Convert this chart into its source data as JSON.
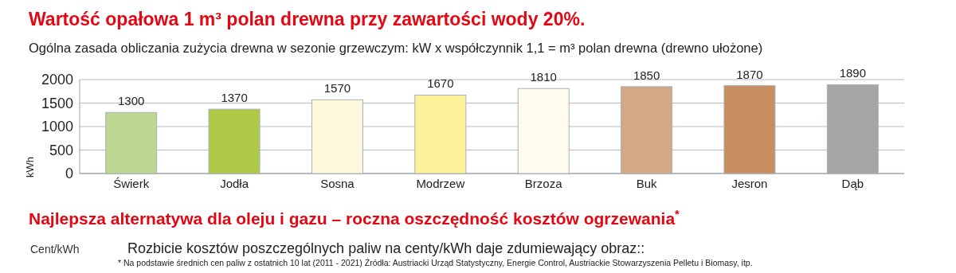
{
  "chart_data": {
    "type": "bar",
    "title": "Wartość opałowa  1 m³ polan drewna przy zawartości wody 20%.",
    "subtitle": "Ogólna zasada obliczania zużycia drewna w sezonie grzewczym: kW x współczynnik 1,1 =  m³ polan drewna (drewno ułożone)",
    "ylabel": "kWh",
    "categories": [
      "Świerk",
      "Jodła",
      "Sosna",
      "Modrzew",
      "Brzoza",
      "Buk",
      "Jesron",
      "Dąb"
    ],
    "values": [
      1300,
      1370,
      1570,
      1670,
      1810,
      1850,
      1870,
      1890
    ],
    "colors": [
      "#bfd891",
      "#adc945",
      "#fef9dc",
      "#fdf29a",
      "#fffcee",
      "#d4a985",
      "#c78f5f",
      "#a5a5a5"
    ],
    "ylim": [
      0,
      2000
    ],
    "yticks": [
      0,
      500,
      1000,
      1500,
      2000
    ],
    "grid": "y",
    "data_labels": true,
    "annotations": [
      "Najlepsza alternatywa dla oleju i gazu – roczna oszczędność kosztów ogrzewania$^{*}$",
      "Cent/kWh",
      "Rozbicie kosztów poszczególnych paliw na centy/kWh daje zdumiewający obraz::",
      "*  Na podstawie średnich cen paliw z ostatnich 10 lat (2011 - 2021) Źródła: Austriacki Urząd Statystyczny, Energie Control, Austriackie Stowarzyszenia Pelletu i Biomasy, itp."
    ]
  }
}
